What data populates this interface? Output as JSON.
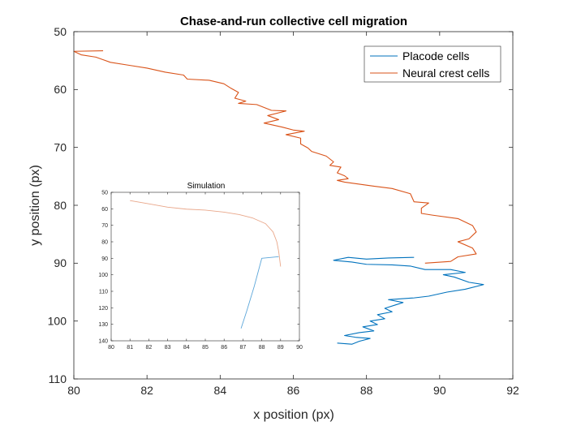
{
  "chart_data": [
    {
      "type": "line",
      "title": "Chase-and-run collective cell migration",
      "xlabel": "x position (px)",
      "ylabel": "y position (px)",
      "xlim": [
        80,
        92
      ],
      "ylim": [
        50,
        110
      ],
      "y_direction": "reverse",
      "xticks": [
        "80",
        "82",
        "84",
        "86",
        "88",
        "90",
        "92"
      ],
      "yticks": [
        "50",
        "60",
        "70",
        "80",
        "90",
        "100",
        "110"
      ],
      "grid": false,
      "legend": {
        "placement": "top-right",
        "entries": [
          "Placode cells",
          "Neural crest cells"
        ]
      },
      "series": [
        {
          "name": "Placode cells",
          "color": "#0072BD",
          "points": [
            [
              87.2,
              103.8
            ],
            [
              87.6,
              104.0
            ],
            [
              87.8,
              103.5
            ],
            [
              88.1,
              103.0
            ],
            [
              87.7,
              102.8
            ],
            [
              87.4,
              102.5
            ],
            [
              87.8,
              102.0
            ],
            [
              88.2,
              101.7
            ],
            [
              87.9,
              101.0
            ],
            [
              88.3,
              100.6
            ],
            [
              88.1,
              100.0
            ],
            [
              88.5,
              99.6
            ],
            [
              88.3,
              98.9
            ],
            [
              88.7,
              98.4
            ],
            [
              88.5,
              97.8
            ],
            [
              88.8,
              97.2
            ],
            [
              89.0,
              96.8
            ],
            [
              88.6,
              96.3
            ],
            [
              89.3,
              96.0
            ],
            [
              89.7,
              95.7
            ],
            [
              90.2,
              95.0
            ],
            [
              90.7,
              94.5
            ],
            [
              91.2,
              93.7
            ],
            [
              90.8,
              93.3
            ],
            [
              90.4,
              92.4
            ],
            [
              90.1,
              92.0
            ],
            [
              90.7,
              91.6
            ],
            [
              90.3,
              91.1
            ],
            [
              89.6,
              91.1
            ],
            [
              89.2,
              90.5
            ],
            [
              88.7,
              90.3
            ],
            [
              88.0,
              90.2
            ],
            [
              87.6,
              89.8
            ],
            [
              87.1,
              89.5
            ],
            [
              87.5,
              89.0
            ],
            [
              88.0,
              89.3
            ],
            [
              88.6,
              89.1
            ],
            [
              89.3,
              89.0
            ]
          ]
        },
        {
          "name": "Neural crest cells",
          "color": "#D95319",
          "points": [
            [
              80.8,
              53.3
            ],
            [
              80.0,
              53.4
            ],
            [
              80.2,
              54.0
            ],
            [
              80.6,
              54.4
            ],
            [
              81.0,
              55.3
            ],
            [
              81.5,
              55.8
            ],
            [
              82.0,
              56.3
            ],
            [
              82.5,
              57.0
            ],
            [
              83.0,
              57.5
            ],
            [
              83.1,
              58.2
            ],
            [
              83.7,
              58.4
            ],
            [
              84.1,
              59.0
            ],
            [
              84.3,
              59.8
            ],
            [
              84.5,
              60.5
            ],
            [
              84.4,
              61.5
            ],
            [
              84.7,
              62.0
            ],
            [
              84.5,
              62.4
            ],
            [
              85.0,
              62.6
            ],
            [
              85.4,
              63.6
            ],
            [
              85.8,
              63.7
            ],
            [
              85.3,
              64.5
            ],
            [
              85.6,
              65.2
            ],
            [
              85.2,
              65.8
            ],
            [
              85.7,
              66.5
            ],
            [
              86.0,
              67.0
            ],
            [
              86.3,
              67.2
            ],
            [
              85.8,
              67.8
            ],
            [
              86.2,
              68.4
            ],
            [
              86.2,
              69.4
            ],
            [
              86.4,
              70.1
            ],
            [
              86.5,
              70.7
            ],
            [
              86.9,
              71.5
            ],
            [
              87.1,
              72.5
            ],
            [
              87.0,
              73.1
            ],
            [
              87.3,
              73.4
            ],
            [
              87.2,
              74.4
            ],
            [
              87.4,
              74.9
            ],
            [
              87.5,
              75.4
            ],
            [
              87.2,
              75.7
            ],
            [
              87.4,
              76.0
            ],
            [
              88.2,
              76.7
            ],
            [
              88.7,
              77.1
            ],
            [
              89.2,
              78.0
            ],
            [
              89.3,
              79.4
            ],
            [
              89.7,
              79.6
            ],
            [
              89.5,
              80.5
            ],
            [
              89.5,
              81.4
            ],
            [
              89.8,
              81.7
            ],
            [
              90.5,
              82.3
            ],
            [
              90.9,
              83.5
            ],
            [
              91.0,
              84.6
            ],
            [
              90.8,
              85.8
            ],
            [
              90.5,
              86.3
            ],
            [
              90.9,
              87.4
            ],
            [
              91.0,
              88.4
            ],
            [
              90.5,
              88.9
            ],
            [
              90.3,
              89.7
            ],
            [
              89.6,
              90.0
            ]
          ]
        }
      ]
    },
    {
      "type": "line",
      "title": "Simulation",
      "xlabel": "",
      "ylabel": "",
      "xlim": [
        80,
        90
      ],
      "ylim": [
        50,
        140
      ],
      "y_direction": "reverse",
      "xticks": [
        "80",
        "81",
        "82",
        "83",
        "84",
        "85",
        "86",
        "87",
        "88",
        "89",
        "90"
      ],
      "yticks": [
        "50",
        "60",
        "70",
        "80",
        "90",
        "100",
        "110",
        "120",
        "130",
        "140"
      ],
      "grid": false,
      "series": [
        {
          "color": "#E9A78A",
          "points": [
            [
              81.0,
              55.0
            ],
            [
              82.0,
              57.0
            ],
            [
              83.0,
              59.0
            ],
            [
              84.0,
              60.2
            ],
            [
              85.0,
              60.8
            ],
            [
              86.0,
              62.0
            ],
            [
              86.8,
              63.5
            ],
            [
              87.5,
              65.5
            ],
            [
              88.2,
              69.0
            ],
            [
              88.6,
              74.0
            ],
            [
              88.8,
              80.0
            ],
            [
              88.9,
              86.0
            ],
            [
              89.0,
              95.0
            ]
          ]
        },
        {
          "color": "#5CA6D9",
          "points": [
            [
              86.9,
              132.5
            ],
            [
              87.2,
              122.0
            ],
            [
              87.6,
              107.0
            ],
            [
              88.0,
              90.0
            ],
            [
              88.9,
              89.0
            ]
          ]
        }
      ]
    }
  ]
}
